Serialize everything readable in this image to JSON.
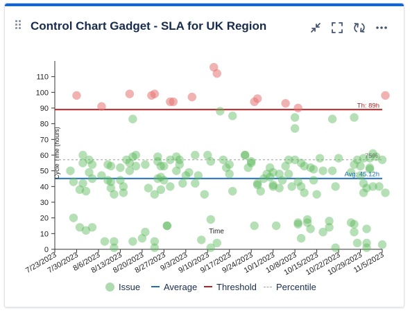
{
  "gadget": {
    "title": "Control Chart Gadget - SLA for UK Region",
    "actions": [
      {
        "name": "minimize-icon"
      },
      {
        "name": "fullscreen-icon"
      },
      {
        "name": "refresh-icon"
      },
      {
        "name": "more-icon"
      }
    ]
  },
  "colors": {
    "accent": "#0c66e4",
    "issue": "#5cb85c",
    "outlier": "#e57373",
    "average": "#1f6fb2",
    "threshold": "#b22222",
    "percentile": "#9e9e9e",
    "text": "#172b4d"
  },
  "legend": {
    "issue": "Issue",
    "average": "Average",
    "threshold": "Threshold",
    "percentile": "Percentile"
  },
  "chart_data": {
    "type": "scatter",
    "title": "",
    "xlabel": "Time",
    "ylabel": "Cycle Time (hours)",
    "ylim": [
      0,
      120
    ],
    "yticks": [
      0,
      10,
      20,
      30,
      40,
      50,
      60,
      70,
      80,
      90,
      100,
      110
    ],
    "xlim": [
      "2023-07-23",
      "2023-11-05"
    ],
    "xticks": [
      "7/23/2023",
      "7/30/2023",
      "8/6/2023",
      "8/13/2023",
      "8/20/2023",
      "8/27/2023",
      "9/3/2023",
      "9/10/2023",
      "9/17/2023",
      "9/24/2023",
      "10/1/2023",
      "10/8/2023",
      "10/15/2023",
      "10/22/2023",
      "10/29/2023",
      "11/5/2023"
    ],
    "grid": false,
    "legend_position": "bottom",
    "reference_lines": {
      "threshold": {
        "value": 89,
        "label": "Th: 89h"
      },
      "average": {
        "value": 45.12,
        "label": "Avg: 45.12h"
      },
      "percentile": {
        "value": 57,
        "label": "75%"
      }
    },
    "issues": [
      [
        "2023-07-28",
        50
      ],
      [
        "2023-07-29",
        43
      ],
      [
        "2023-07-29",
        20
      ],
      [
        "2023-07-30",
        98
      ],
      [
        "2023-07-31",
        38
      ],
      [
        "2023-07-31",
        14
      ],
      [
        "2023-08-01",
        60
      ],
      [
        "2023-08-01",
        55
      ],
      [
        "2023-08-01",
        42
      ],
      [
        "2023-08-02",
        37
      ],
      [
        "2023-08-02",
        12
      ],
      [
        "2023-08-03",
        49
      ],
      [
        "2023-08-03",
        57
      ],
      [
        "2023-08-04",
        45
      ],
      [
        "2023-08-04",
        14
      ],
      [
        "2023-08-04",
        54
      ],
      [
        "2023-08-07",
        47
      ],
      [
        "2023-08-07",
        91
      ],
      [
        "2023-08-08",
        5
      ],
      [
        "2023-08-09",
        54
      ],
      [
        "2023-08-09",
        44
      ],
      [
        "2023-08-10",
        53
      ],
      [
        "2023-08-10",
        43
      ],
      [
        "2023-08-10",
        39
      ],
      [
        "2023-08-11",
        35
      ],
      [
        "2023-08-11",
        5
      ],
      [
        "2023-08-11",
        1
      ],
      [
        "2023-08-13",
        52
      ],
      [
        "2023-08-13",
        44
      ],
      [
        "2023-08-14",
        36
      ],
      [
        "2023-08-14",
        40
      ],
      [
        "2023-08-15",
        57
      ],
      [
        "2023-08-16",
        99
      ],
      [
        "2023-08-16",
        50
      ],
      [
        "2023-08-16",
        55
      ],
      [
        "2023-08-17",
        83
      ],
      [
        "2023-08-17",
        59
      ],
      [
        "2023-08-17",
        5
      ],
      [
        "2023-08-18",
        60
      ],
      [
        "2023-08-18",
        53
      ],
      [
        "2023-08-20",
        7
      ],
      [
        "2023-08-21",
        54
      ],
      [
        "2023-08-21",
        11
      ],
      [
        "2023-08-22",
        39
      ],
      [
        "2023-08-23",
        98
      ],
      [
        "2023-08-24",
        99
      ],
      [
        "2023-08-24",
        35
      ],
      [
        "2023-08-24",
        5
      ],
      [
        "2023-08-24",
        1
      ],
      [
        "2023-08-25",
        59
      ],
      [
        "2023-08-25",
        45
      ],
      [
        "2023-08-25",
        56
      ],
      [
        "2023-08-26",
        38
      ],
      [
        "2023-08-26",
        46
      ],
      [
        "2023-08-26",
        53
      ],
      [
        "2023-08-27",
        44
      ],
      [
        "2023-08-27",
        53
      ],
      [
        "2023-08-28",
        15
      ],
      [
        "2023-08-28",
        15
      ],
      [
        "2023-08-29",
        94
      ],
      [
        "2023-08-29",
        40
      ],
      [
        "2023-08-29",
        57
      ],
      [
        "2023-08-30",
        94
      ],
      [
        "2023-08-31",
        50
      ],
      [
        "2023-08-31",
        59
      ],
      [
        "2023-09-01",
        54
      ],
      [
        "2023-09-01",
        57
      ],
      [
        "2023-09-02",
        42
      ],
      [
        "2023-09-03",
        47
      ],
      [
        "2023-09-04",
        49
      ],
      [
        "2023-09-05",
        97
      ],
      [
        "2023-09-06",
        60
      ],
      [
        "2023-09-06",
        42
      ],
      [
        "2023-09-07",
        47
      ],
      [
        "2023-09-08",
        6
      ],
      [
        "2023-09-09",
        35
      ],
      [
        "2023-09-10",
        60
      ],
      [
        "2023-09-11",
        19
      ],
      [
        "2023-09-11",
        1
      ],
      [
        "2023-09-11",
        56
      ],
      [
        "2023-09-12",
        116
      ],
      [
        "2023-09-13",
        112
      ],
      [
        "2023-09-13",
        4
      ],
      [
        "2023-09-14",
        88
      ],
      [
        "2023-09-15",
        57
      ],
      [
        "2023-09-16",
        52
      ],
      [
        "2023-09-17",
        54
      ],
      [
        "2023-09-17",
        48
      ],
      [
        "2023-09-18",
        37
      ],
      [
        "2023-09-18",
        85
      ],
      [
        "2023-09-22",
        60
      ],
      [
        "2023-09-22",
        60
      ],
      [
        "2023-09-23",
        52
      ],
      [
        "2023-09-24",
        56
      ],
      [
        "2023-09-24",
        55
      ],
      [
        "2023-09-25",
        94
      ],
      [
        "2023-09-25",
        15
      ],
      [
        "2023-09-26",
        96
      ],
      [
        "2023-09-26",
        42
      ],
      [
        "2023-09-26",
        41
      ],
      [
        "2023-09-27",
        37
      ],
      [
        "2023-09-28",
        45
      ],
      [
        "2023-09-29",
        48
      ],
      [
        "2023-09-30",
        52
      ],
      [
        "2023-09-30",
        46
      ],
      [
        "2023-10-01",
        49
      ],
      [
        "2023-10-01",
        40
      ],
      [
        "2023-10-01",
        41
      ],
      [
        "2023-10-02",
        15
      ],
      [
        "2023-10-03",
        39
      ],
      [
        "2023-10-03",
        48
      ],
      [
        "2023-10-04",
        44
      ],
      [
        "2023-10-05",
        93
      ],
      [
        "2023-10-05",
        53
      ],
      [
        "2023-10-06",
        57
      ],
      [
        "2023-10-06",
        48
      ],
      [
        "2023-10-07",
        40
      ],
      [
        "2023-10-08",
        77
      ],
      [
        "2023-10-08",
        84
      ],
      [
        "2023-10-08",
        57
      ],
      [
        "2023-10-09",
        43
      ],
      [
        "2023-10-09",
        16
      ],
      [
        "2023-10-09",
        17
      ],
      [
        "2023-10-09",
        90
      ],
      [
        "2023-10-10",
        7
      ],
      [
        "2023-10-10",
        40
      ],
      [
        "2023-10-10",
        55
      ],
      [
        "2023-10-11",
        36
      ],
      [
        "2023-10-11",
        53
      ],
      [
        "2023-10-12",
        17
      ],
      [
        "2023-10-12",
        19
      ],
      [
        "2023-10-13",
        52
      ],
      [
        "2023-10-13",
        13
      ],
      [
        "2023-10-14",
        51
      ],
      [
        "2023-10-14",
        44
      ],
      [
        "2023-10-15",
        35
      ],
      [
        "2023-10-16",
        58
      ],
      [
        "2023-10-17",
        11
      ],
      [
        "2023-10-17",
        50
      ],
      [
        "2023-10-19",
        18
      ],
      [
        "2023-10-19",
        14
      ],
      [
        "2023-10-20",
        50
      ],
      [
        "2023-10-20",
        83
      ],
      [
        "2023-10-21",
        40
      ],
      [
        "2023-10-21",
        1
      ],
      [
        "2023-10-22",
        58
      ],
      [
        "2023-10-26",
        49
      ],
      [
        "2023-10-26",
        17
      ],
      [
        "2023-10-27",
        84
      ],
      [
        "2023-10-27",
        11
      ],
      [
        "2023-10-27",
        54
      ],
      [
        "2023-10-27",
        16
      ],
      [
        "2023-10-28",
        57
      ],
      [
        "2023-10-28",
        4
      ],
      [
        "2023-10-29",
        53
      ],
      [
        "2023-10-29",
        47
      ],
      [
        "2023-10-30",
        58
      ],
      [
        "2023-10-30",
        42
      ],
      [
        "2023-10-30",
        36
      ],
      [
        "2023-10-31",
        13
      ],
      [
        "2023-10-31",
        4
      ],
      [
        "2023-10-31",
        1
      ],
      [
        "2023-10-31",
        39
      ],
      [
        "2023-11-01",
        52
      ],
      [
        "2023-11-01",
        58
      ],
      [
        "2023-11-01",
        51
      ],
      [
        "2023-11-02",
        61
      ],
      [
        "2023-11-02",
        40
      ],
      [
        "2023-11-03",
        59
      ],
      [
        "2023-11-04",
        40
      ],
      [
        "2023-11-05",
        3
      ],
      [
        "2023-11-05",
        57
      ],
      [
        "2023-11-06",
        98
      ],
      [
        "2023-11-06",
        36
      ]
    ]
  }
}
